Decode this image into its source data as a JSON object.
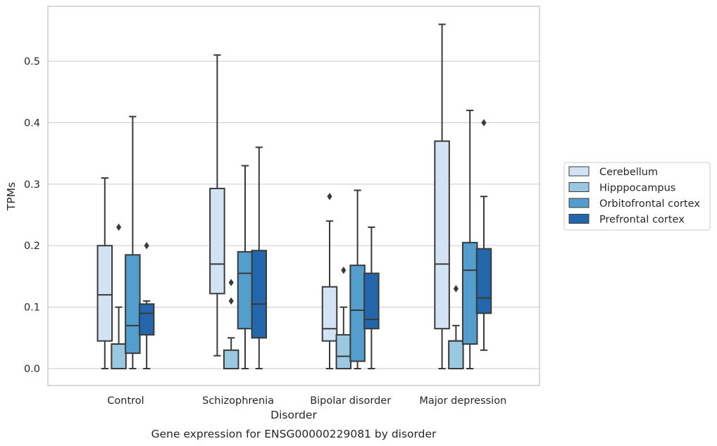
{
  "caption": "Gene expression for ENSG00000229081 by disorder",
  "chart_data": {
    "type": "boxplot",
    "xlabel": "Disorder",
    "ylabel": "TPMs",
    "ylim": [
      -0.028,
      0.59
    ],
    "yticks": [
      0.0,
      0.1,
      0.2,
      0.3,
      0.4,
      0.5
    ],
    "ytick_labels": [
      "0.0",
      "0.1",
      "0.2",
      "0.3",
      "0.4",
      "0.5"
    ],
    "grid": "horizontal",
    "legend_position": "right-outside",
    "categories": [
      "Control",
      "Schizophrenia",
      "Bipolar disorder",
      "Major depression"
    ],
    "series": [
      {
        "name": "Cerebellum",
        "color": "#d2e3f3",
        "boxes": [
          {
            "whislo": 0.0,
            "q1": 0.045,
            "med": 0.12,
            "q3": 0.2,
            "whishi": 0.31,
            "fliers": []
          },
          {
            "whislo": 0.021,
            "q1": 0.122,
            "med": 0.17,
            "q3": 0.293,
            "whishi": 0.51,
            "fliers": []
          },
          {
            "whislo": 0.0,
            "q1": 0.045,
            "med": 0.065,
            "q3": 0.133,
            "whishi": 0.24,
            "fliers": [
              0.28
            ]
          },
          {
            "whislo": 0.0,
            "q1": 0.065,
            "med": 0.17,
            "q3": 0.37,
            "whishi": 0.56,
            "fliers": []
          }
        ]
      },
      {
        "name": "Hipppocampus",
        "color": "#9ac8e0",
        "boxes": [
          {
            "whislo": 0.0,
            "q1": 0.0,
            "med": 0.04,
            "q3": 0.04,
            "whishi": 0.1,
            "fliers": [
              0.23
            ]
          },
          {
            "whislo": 0.0,
            "q1": 0.0,
            "med": 0.0,
            "q3": 0.03,
            "whishi": 0.05,
            "fliers": [
              0.14,
              0.11
            ]
          },
          {
            "whislo": 0.0,
            "q1": 0.0,
            "med": 0.02,
            "q3": 0.055,
            "whishi": 0.1,
            "fliers": [
              0.16
            ]
          },
          {
            "whislo": 0.0,
            "q1": 0.0,
            "med": 0.045,
            "q3": 0.045,
            "whishi": 0.07,
            "fliers": [
              0.13
            ]
          }
        ]
      },
      {
        "name": "Orbitofrontal cortex",
        "color": "#539ecd",
        "boxes": [
          {
            "whislo": 0.0,
            "q1": 0.025,
            "med": 0.07,
            "q3": 0.185,
            "whishi": 0.41,
            "fliers": []
          },
          {
            "whislo": 0.0,
            "q1": 0.065,
            "med": 0.155,
            "q3": 0.19,
            "whishi": 0.33,
            "fliers": []
          },
          {
            "whislo": 0.0,
            "q1": 0.012,
            "med": 0.095,
            "q3": 0.168,
            "whishi": 0.29,
            "fliers": []
          },
          {
            "whislo": 0.0,
            "q1": 0.04,
            "med": 0.16,
            "q3": 0.205,
            "whishi": 0.42,
            "fliers": []
          }
        ]
      },
      {
        "name": "Prefrontal cortex",
        "color": "#2366ab",
        "boxes": [
          {
            "whislo": 0.0,
            "q1": 0.055,
            "med": 0.09,
            "q3": 0.105,
            "whishi": 0.11,
            "fliers": [
              0.2
            ]
          },
          {
            "whislo": 0.0,
            "q1": 0.05,
            "med": 0.105,
            "q3": 0.192,
            "whishi": 0.36,
            "fliers": []
          },
          {
            "whislo": 0.0,
            "q1": 0.065,
            "med": 0.08,
            "q3": 0.155,
            "whishi": 0.23,
            "fliers": []
          },
          {
            "whislo": 0.03,
            "q1": 0.09,
            "med": 0.115,
            "q3": 0.195,
            "whishi": 0.28,
            "fliers": [
              0.4
            ]
          }
        ]
      }
    ],
    "colors": {
      "line": "#3a3a3a",
      "grid": "#d2d2d2",
      "frame": "#cccccc",
      "text": "#262626"
    }
  }
}
